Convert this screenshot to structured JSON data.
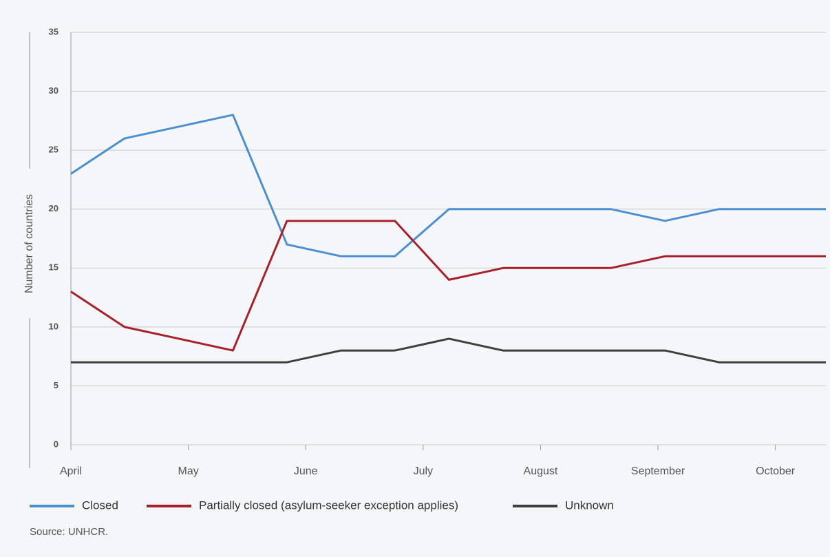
{
  "chart_data": {
    "type": "line",
    "x": [
      0,
      0.457,
      0.92,
      1.38,
      1.84,
      2.3,
      2.76,
      3.22,
      3.68,
      4.14,
      4.6,
      5.06,
      5.52,
      5.98,
      6.43
    ],
    "series": [
      {
        "name": "Closed",
        "color": "#4a90d0",
        "values": [
          23,
          26,
          27,
          28,
          17,
          16,
          16,
          20,
          20,
          20,
          20,
          19,
          20,
          20,
          20
        ]
      },
      {
        "name": "Partially closed (asylum-seeker exception applies)",
        "color": "#a8202a",
        "values": [
          13,
          10,
          9,
          8,
          19,
          19,
          19,
          14,
          15,
          15,
          15,
          16,
          16,
          16,
          16
        ]
      },
      {
        "name": "Unknown",
        "color": "#3f3f3f",
        "values": [
          7,
          7,
          7,
          7,
          7,
          8,
          8,
          9,
          8,
          8,
          8,
          8,
          7,
          7,
          7
        ]
      }
    ],
    "xlim": [
      0,
      6.43
    ],
    "xticks": [
      {
        "value": 0,
        "label": "April"
      },
      {
        "value": 1,
        "label": "May"
      },
      {
        "value": 2,
        "label": "June"
      },
      {
        "value": 3,
        "label": "July"
      },
      {
        "value": 4,
        "label": "August"
      },
      {
        "value": 5,
        "label": "September"
      },
      {
        "value": 6,
        "label": "October"
      }
    ],
    "ylim": [
      0,
      35
    ],
    "yticks": [
      0,
      5,
      10,
      15,
      20,
      25,
      30,
      35
    ],
    "ylabel": "Number of countries",
    "grid": true,
    "source": "Source: UNHCR."
  }
}
